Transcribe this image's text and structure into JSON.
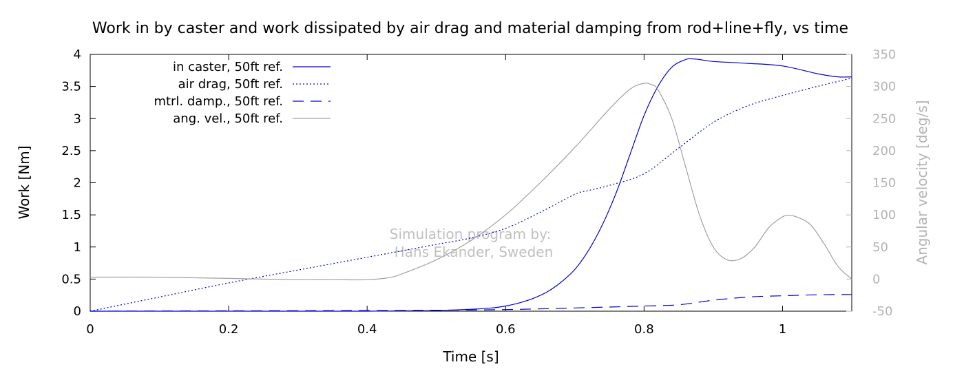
{
  "chart_data": {
    "type": "line",
    "title": "Work in by caster and work dissipated by air drag and material damping from rod+line+fly, vs time",
    "xlabel": "Time [s]",
    "ylabel": "Work [Nm]",
    "y2label": "Angular velocity [deg/s]",
    "xlim": [
      0,
      1.1
    ],
    "ylim": [
      0,
      4
    ],
    "y2lim": [
      -50,
      350
    ],
    "xticks": [
      "0",
      "0.2",
      "0.4",
      "0.6",
      "0.8",
      "1"
    ],
    "xtick_values": [
      0,
      0.2,
      0.4,
      0.6,
      0.8,
      1.0
    ],
    "yticks": [
      "0",
      "0.5",
      "1",
      "1.5",
      "2",
      "2.5",
      "3",
      "3.5",
      "4"
    ],
    "ytick_values": [
      0,
      0.5,
      1,
      1.5,
      2,
      2.5,
      3,
      3.5,
      4
    ],
    "y2ticks": [
      "-50",
      "0",
      "50",
      "100",
      "150",
      "200",
      "250",
      "300",
      "350"
    ],
    "y2tick_values": [
      -50,
      0,
      50,
      100,
      150,
      200,
      250,
      300,
      350
    ],
    "grid": false,
    "legend_position": "top-left",
    "colors": {
      "work": "#0000cc",
      "angvel": "#a0a0a0",
      "secondary_axis": "#b3b3b3"
    },
    "annotation": [
      "Simulation program by:",
      "Hans Ekander, Sweden"
    ],
    "series": [
      {
        "name": "in caster, 50ft ref.",
        "axis": "left",
        "style": "solid",
        "x": [
          0,
          0.1,
          0.2,
          0.3,
          0.4,
          0.45,
          0.5,
          0.55,
          0.58,
          0.6,
          0.62,
          0.64,
          0.66,
          0.68,
          0.7,
          0.72,
          0.74,
          0.76,
          0.78,
          0.8,
          0.82,
          0.84,
          0.86,
          0.87,
          0.88,
          0.9,
          0.95,
          1.0,
          1.05,
          1.08,
          1.1
        ],
        "y": [
          0,
          0,
          0,
          0,
          0,
          0.005,
          0.01,
          0.03,
          0.05,
          0.08,
          0.13,
          0.2,
          0.3,
          0.45,
          0.65,
          0.95,
          1.35,
          1.85,
          2.45,
          3.05,
          3.5,
          3.8,
          3.92,
          3.93,
          3.92,
          3.89,
          3.86,
          3.82,
          3.7,
          3.65,
          3.65
        ]
      },
      {
        "name": "air drag, 50ft ref.",
        "axis": "left",
        "style": "dotted",
        "x": [
          0,
          0.1,
          0.2,
          0.3,
          0.4,
          0.5,
          0.55,
          0.6,
          0.65,
          0.7,
          0.72,
          0.75,
          0.8,
          0.85,
          0.9,
          0.95,
          1.0,
          1.05,
          1.1
        ],
        "y": [
          0,
          0.22,
          0.44,
          0.64,
          0.84,
          1.04,
          1.14,
          1.29,
          1.54,
          1.82,
          1.88,
          1.96,
          2.14,
          2.54,
          2.94,
          3.2,
          3.36,
          3.5,
          3.63
        ]
      },
      {
        "name": "mtrl. damp., 50ft ref.",
        "axis": "left",
        "style": "dashed",
        "x": [
          0,
          0.2,
          0.4,
          0.5,
          0.6,
          0.7,
          0.8,
          0.85,
          0.9,
          0.95,
          1.0,
          1.05,
          1.1
        ],
        "y": [
          0,
          0.005,
          0.01,
          0.015,
          0.025,
          0.05,
          0.08,
          0.1,
          0.17,
          0.22,
          0.24,
          0.255,
          0.26
        ]
      },
      {
        "name": "ang. vel., 50ft ref.",
        "axis": "right",
        "style": "solid",
        "x": [
          0,
          0.1,
          0.2,
          0.3,
          0.35,
          0.4,
          0.43,
          0.45,
          0.5,
          0.55,
          0.6,
          0.65,
          0.7,
          0.75,
          0.78,
          0.8,
          0.81,
          0.82,
          0.84,
          0.86,
          0.88,
          0.9,
          0.92,
          0.94,
          0.96,
          0.98,
          1.0,
          1.01,
          1.02,
          1.04,
          1.06,
          1.08,
          1.1
        ],
        "y": [
          3,
          3,
          1,
          -1,
          -1,
          -1,
          2,
          8,
          30,
          60,
          100,
          150,
          205,
          265,
          296,
          305,
          303,
          295,
          250,
          175,
          100,
          50,
          30,
          32,
          50,
          80,
          97,
          99,
          97,
          85,
          55,
          20,
          0
        ]
      }
    ]
  }
}
